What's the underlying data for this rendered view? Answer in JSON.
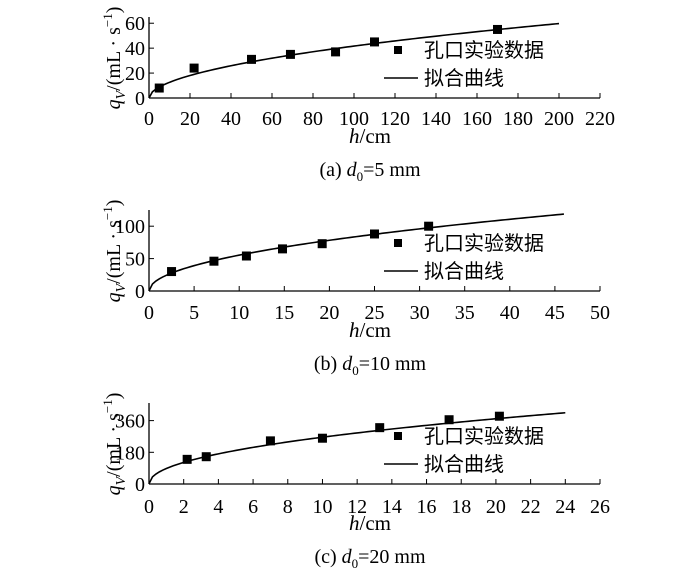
{
  "chart_data": [
    {
      "type": "scatter",
      "caption": {
        "prefix": "(a) ",
        "var": "d",
        "sub": "0",
        "value": "=5 mm"
      },
      "ylabel": {
        "q": "q",
        "sub": "V",
        "unit": "/(mL · s",
        "exp": "−1",
        "close": ")"
      },
      "xlabel": {
        "var": "h",
        "unit": "/cm"
      },
      "xlim": [
        0,
        220
      ],
      "ylim": [
        0,
        65
      ],
      "xticks": [
        0,
        20,
        40,
        60,
        80,
        100,
        120,
        140,
        160,
        180,
        200,
        220
      ],
      "yticks": [
        0,
        20,
        40,
        60
      ],
      "series": [
        {
          "name": "孔口实验数据",
          "kind": "scatter",
          "x": [
            5,
            22,
            50,
            69,
            91,
            110,
            170
          ],
          "y": [
            8,
            24,
            31,
            35,
            37,
            45,
            55
          ]
        },
        {
          "name": "拟合曲线",
          "kind": "line",
          "func": "power",
          "coef": 3.8,
          "exp": 0.52,
          "xmin": 0,
          "xmax": 200
        }
      ],
      "legend": "center-right"
    },
    {
      "type": "scatter",
      "caption": {
        "prefix": "(b) ",
        "var": "d",
        "sub": "0",
        "value": "=10 mm"
      },
      "ylabel": {
        "q": "q",
        "sub": "V",
        "unit": "/(mL · s",
        "exp": "−1",
        "close": ")"
      },
      "xlabel": {
        "var": "h",
        "unit": "/cm"
      },
      "xlim": [
        0,
        50
      ],
      "ylim": [
        0,
        125
      ],
      "xticks": [
        0,
        5,
        10,
        15,
        20,
        25,
        30,
        35,
        40,
        45,
        50
      ],
      "yticks": [
        0,
        50,
        100
      ],
      "series": [
        {
          "name": "孔口实验数据",
          "kind": "scatter",
          "x": [
            2.5,
            7.2,
            10.8,
            14.8,
            19.2,
            25,
            31
          ],
          "y": [
            30,
            46,
            54,
            65,
            73,
            88,
            100
          ]
        },
        {
          "name": "拟合曲线",
          "kind": "line",
          "func": "power",
          "coef": 17.5,
          "exp": 0.5,
          "xmin": 0,
          "xmax": 46
        }
      ],
      "legend": "center-right"
    },
    {
      "type": "scatter",
      "caption": {
        "prefix": "(c) ",
        "var": "d",
        "sub": "0",
        "value": "=20 mm"
      },
      "ylabel": {
        "q": "q",
        "sub": "V",
        "unit": "/(mL · s",
        "exp": "−1",
        "close": ")"
      },
      "xlabel": {
        "var": "h",
        "unit": "/cm"
      },
      "xlim": [
        0,
        26
      ],
      "ylim": [
        0,
        460
      ],
      "xticks": [
        0,
        2,
        4,
        6,
        8,
        10,
        12,
        14,
        16,
        18,
        20,
        22,
        24,
        26
      ],
      "yticks": [
        0,
        180,
        360
      ],
      "series": [
        {
          "name": "孔口实验数据",
          "kind": "scatter",
          "x": [
            2.2,
            3.3,
            7,
            10,
            13.3,
            17.3,
            20.2
          ],
          "y": [
            140,
            155,
            245,
            260,
            320,
            365,
            385
          ]
        },
        {
          "name": "拟合曲线",
          "kind": "line",
          "func": "power",
          "coef": 88,
          "exp": 0.48,
          "xmin": 0,
          "xmax": 24
        }
      ],
      "legend": "center-right"
    }
  ]
}
